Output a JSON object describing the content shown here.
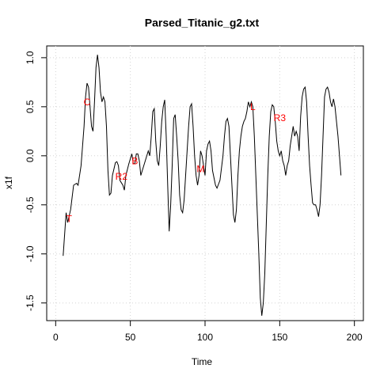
{
  "chart_data": {
    "type": "line",
    "title": "Parsed_Titanic_g2.txt",
    "xlabel": "Time",
    "ylabel": "x1f",
    "x": [
      5,
      7,
      8,
      10,
      12,
      14,
      15,
      17,
      19,
      20,
      21,
      22,
      23,
      24,
      25,
      26,
      27,
      28,
      29,
      30,
      31,
      32,
      33,
      34,
      35,
      36,
      37,
      38,
      40,
      41,
      42,
      43,
      45,
      46,
      47,
      49,
      50,
      51,
      52,
      53,
      54,
      55,
      56,
      57,
      58,
      60,
      62,
      63,
      64,
      65,
      66,
      67,
      68,
      69,
      70,
      71,
      72,
      73,
      74,
      75,
      76,
      77,
      78,
      79,
      80,
      81,
      82,
      83,
      84,
      85,
      86,
      87,
      88,
      89,
      90,
      91,
      92,
      93,
      94,
      95,
      96,
      97,
      98,
      99,
      100,
      101,
      102,
      103,
      104,
      105,
      107,
      108,
      110,
      112,
      113,
      114,
      115,
      116,
      117,
      118,
      119,
      120,
      121,
      122,
      123,
      124,
      125,
      126,
      127,
      128,
      129,
      130,
      131,
      132,
      133,
      134,
      135,
      136,
      137,
      138,
      139,
      140,
      141,
      142,
      143,
      144,
      145,
      146,
      147,
      148,
      149,
      150,
      151,
      152,
      153,
      154,
      155,
      156,
      157,
      158,
      159,
      160,
      161,
      162,
      163,
      164,
      165,
      166,
      167,
      168,
      169,
      170,
      171,
      172,
      173,
      174,
      175,
      176,
      177,
      178,
      179,
      180,
      181,
      182,
      183,
      184,
      185,
      186,
      187,
      188,
      189,
      190,
      191
    ],
    "series": [
      {
        "name": "x1f",
        "color": "#000000",
        "values": [
          -1.02,
          -0.58,
          -0.68,
          -0.55,
          -0.3,
          -0.28,
          -0.3,
          -0.1,
          0.3,
          0.6,
          0.74,
          0.7,
          0.5,
          0.3,
          0.25,
          0.55,
          0.9,
          1.03,
          0.9,
          0.65,
          0.55,
          0.6,
          0.55,
          0.3,
          -0.15,
          -0.4,
          -0.38,
          -0.2,
          -0.07,
          -0.06,
          -0.1,
          -0.25,
          -0.3,
          -0.35,
          -0.2,
          -0.08,
          -0.03,
          0.02,
          -0.08,
          -0.08,
          0.02,
          0.02,
          -0.05,
          -0.2,
          -0.15,
          -0.05,
          0.05,
          0,
          0.2,
          0.45,
          0.48,
          0.15,
          -0.05,
          -0.1,
          0.1,
          0.35,
          0.5,
          0.57,
          0.2,
          -0.3,
          -0.77,
          -0.5,
          -0.1,
          0.38,
          0.42,
          0.2,
          -0.05,
          -0.4,
          -0.55,
          -0.58,
          -0.45,
          -0.2,
          0.05,
          0.3,
          0.5,
          0.53,
          0.3,
          0,
          -0.2,
          -0.3,
          -0.2,
          0.05,
          0,
          -0.1,
          -0.2,
          0.05,
          0.12,
          0.15,
          0.05,
          -0.15,
          -0.3,
          -0.33,
          -0.25,
          0,
          0.2,
          0.35,
          0.38,
          0.3,
          0,
          -0.3,
          -0.6,
          -0.68,
          -0.55,
          -0.2,
          0.05,
          0.2,
          0.3,
          0.35,
          0.38,
          0.45,
          0.55,
          0.5,
          0.55,
          0.5,
          0.2,
          -0.2,
          -0.6,
          -1,
          -1.45,
          -1.63,
          -1.5,
          -1.2,
          -0.7,
          -0.2,
          0.2,
          0.45,
          0.52,
          0.5,
          0.35,
          0.15,
          0.05,
          0,
          0.05,
          -0.05,
          -0.1,
          -0.2,
          -0.1,
          -0.05,
          0.1,
          0.2,
          0.3,
          0.2,
          0.25,
          0.2,
          0.05,
          0.4,
          0.6,
          0.68,
          0.7,
          0.55,
          0.2,
          -0.1,
          -0.3,
          -0.48,
          -0.5,
          -0.5,
          -0.55,
          -0.62,
          -0.5,
          -0.2,
          0.2,
          0.6,
          0.68,
          0.7,
          0.65,
          0.55,
          0.5,
          0.58,
          0.5,
          0.35,
          0.2,
          0,
          -0.2
        ]
      }
    ],
    "xlim": [
      -6,
      206
    ],
    "xticks": [
      0,
      50,
      100,
      150,
      200
    ],
    "ylim": [
      -1.68,
      1.12
    ],
    "yticks": [
      {
        "value": 1,
        "label": "1.0"
      },
      0.5,
      {
        "value": 0,
        "label": "0.0"
      },
      -0.5,
      {
        "value": -1,
        "label": "-1.0"
      },
      -1.5
    ],
    "grid": true,
    "annotations": [
      {
        "text": "T",
        "x": 9,
        "y": -0.65
      },
      {
        "text": "C",
        "x": 21,
        "y": 0.54
      },
      {
        "text": "R2",
        "x": 44,
        "y": -0.22
      },
      {
        "text": "B",
        "x": 53,
        "y": -0.06
      },
      {
        "text": "M",
        "x": 97,
        "y": -0.14
      },
      {
        "text": "L",
        "x": 132,
        "y": 0.49
      },
      {
        "text": "R3",
        "x": 150,
        "y": 0.38
      }
    ],
    "annotation_color": "#ff0000"
  }
}
